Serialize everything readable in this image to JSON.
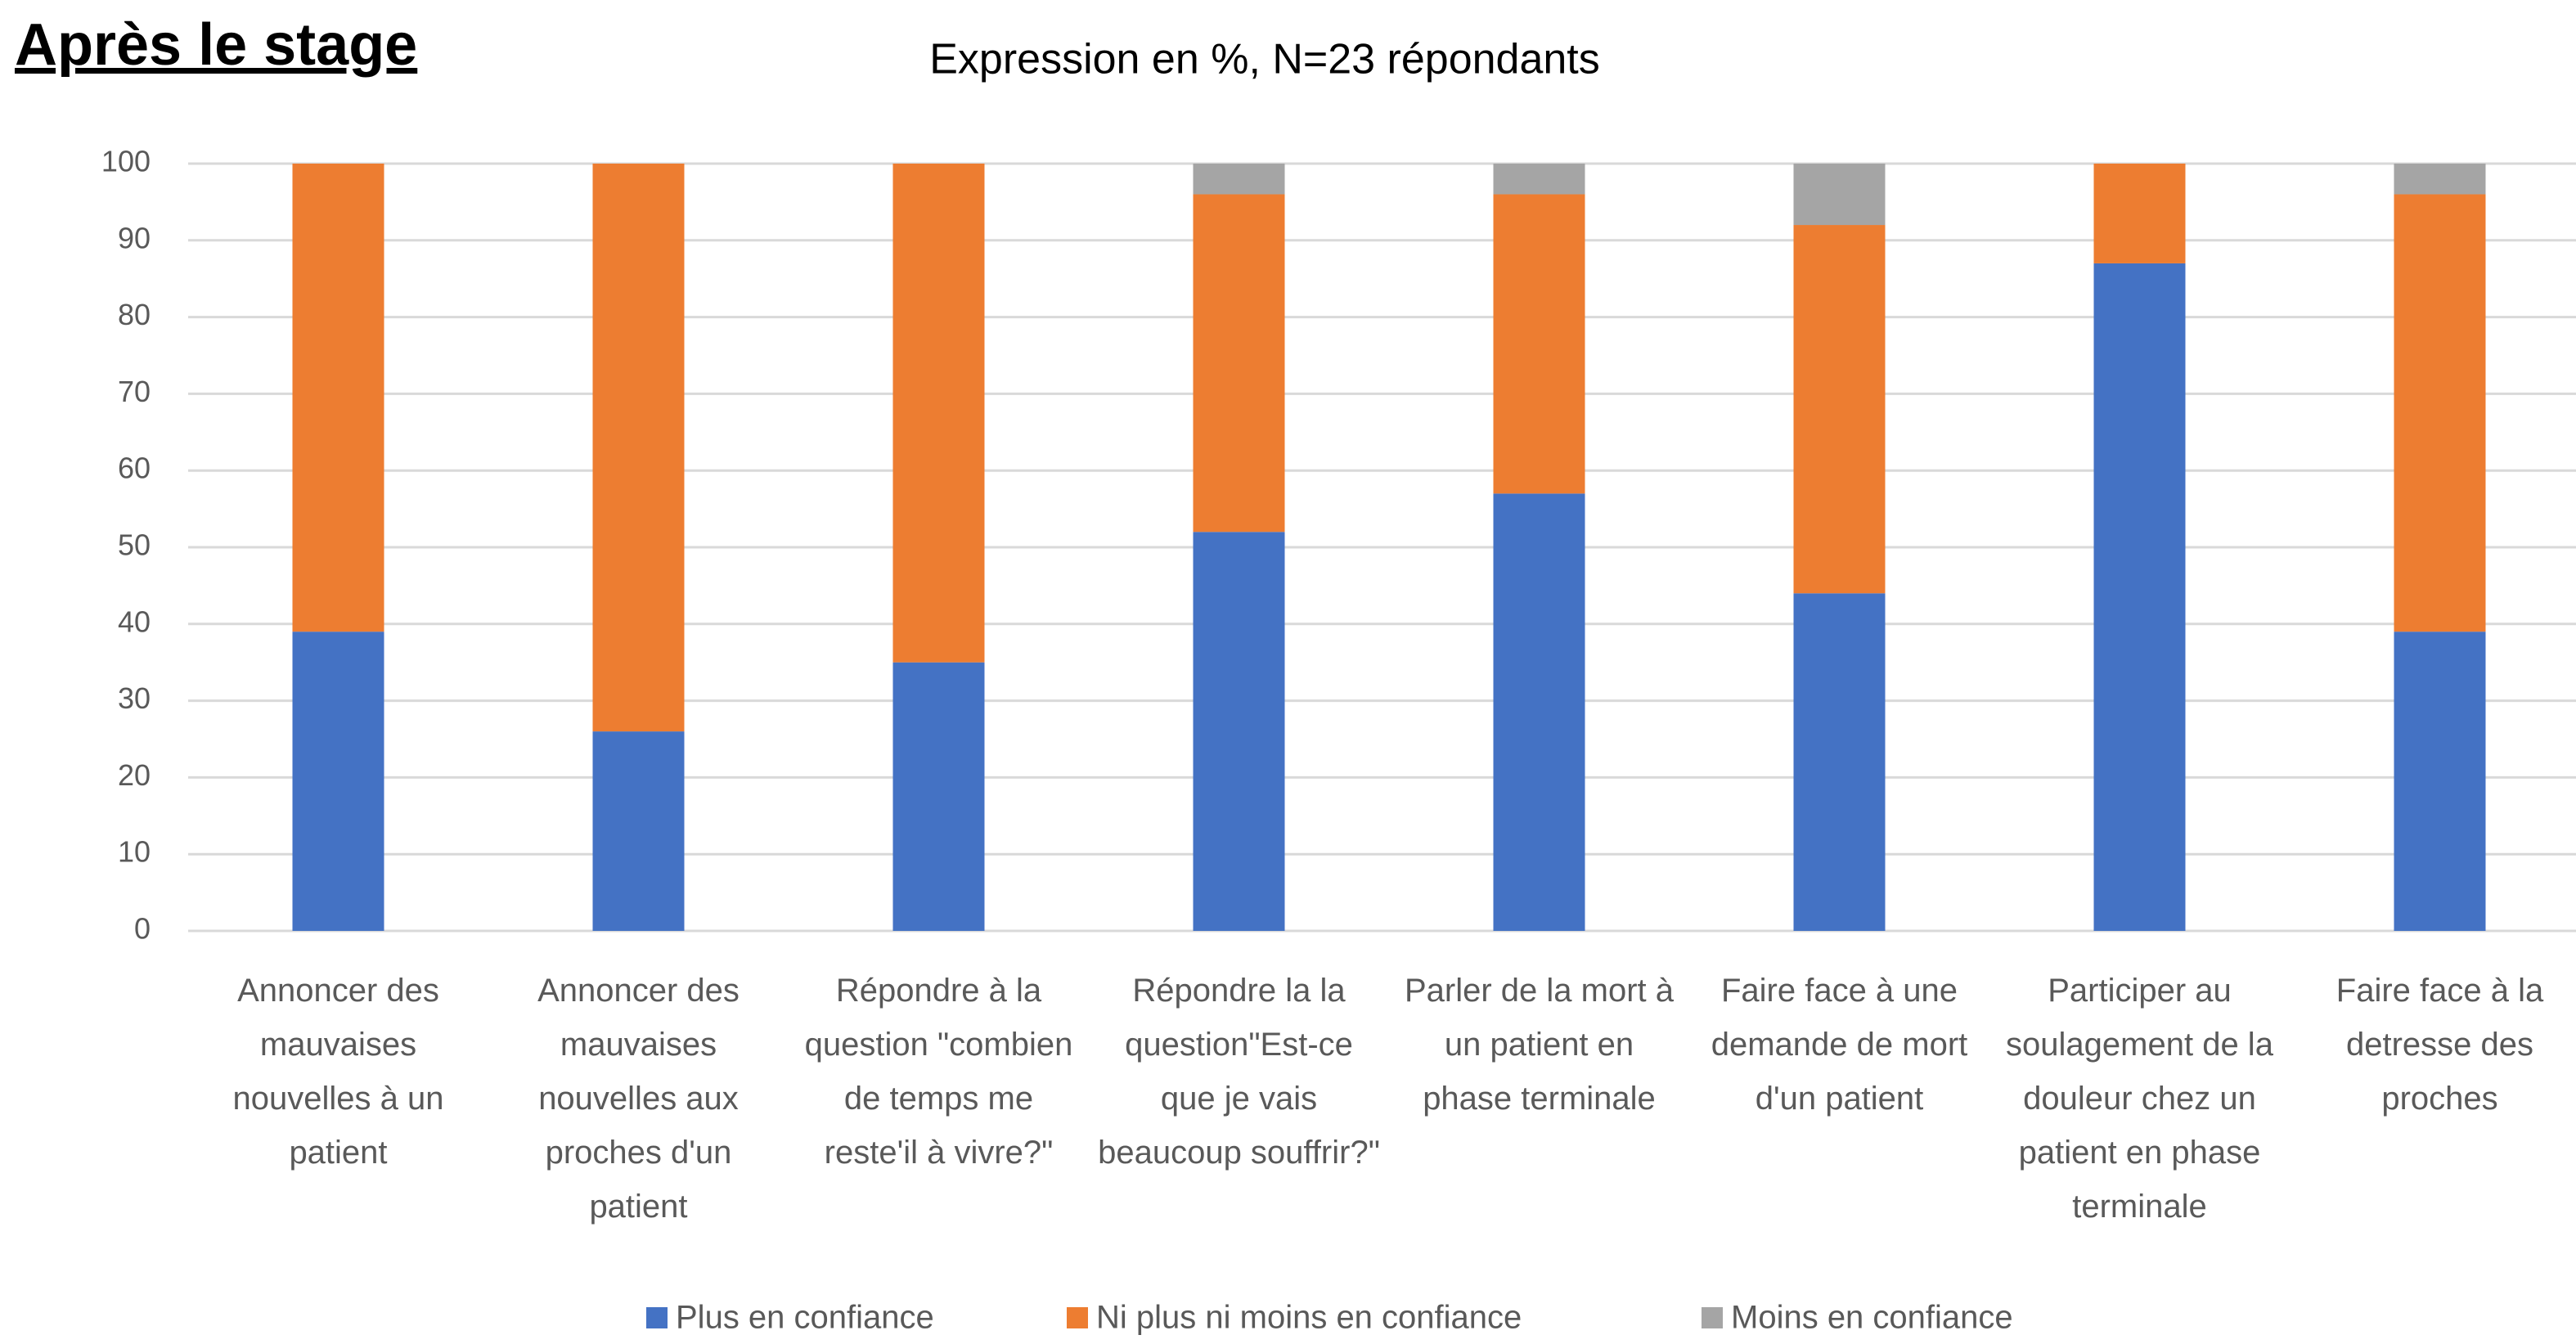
{
  "heading": "Après le stage",
  "chart_data": {
    "type": "stacked_bar",
    "title": "Expression en %, N=23 répondants",
    "categories": [
      "Annoncer des mauvaises nouvelles à un patient",
      "Annoncer des mauvaises nouvelles aux proches d'un patient",
      "Répondre à la question \"combien de temps me reste'il à vivre?\"",
      "Répondre la la question\"Est-ce que je vais beaucoup souffrir?\"",
      "Parler de la mort à un patient en phase terminale",
      "Faire face à une demande de mort d'un patient",
      "Participer au soulagement de la douleur chez un patient en phase terminale",
      "Faire face à la detresse des proches"
    ],
    "series": [
      {
        "name": "Plus en confiance",
        "color": "#4472c4",
        "values": [
          39,
          26,
          35,
          52,
          57,
          44,
          87,
          39
        ]
      },
      {
        "name": "Ni plus ni moins en confiance",
        "color": "#ed7d31",
        "values": [
          61,
          74,
          65,
          44,
          39,
          48,
          13,
          57
        ]
      },
      {
        "name": "Moins en confiance",
        "color": "#a5a5a5",
        "values": [
          0,
          0,
          0,
          4,
          4,
          8,
          0,
          4
        ]
      }
    ],
    "ylim": [
      0,
      100
    ],
    "yticks": [
      0,
      10,
      20,
      30,
      40,
      50,
      60,
      70,
      80,
      90,
      100
    ],
    "grid": true,
    "legend": "bottom"
  }
}
